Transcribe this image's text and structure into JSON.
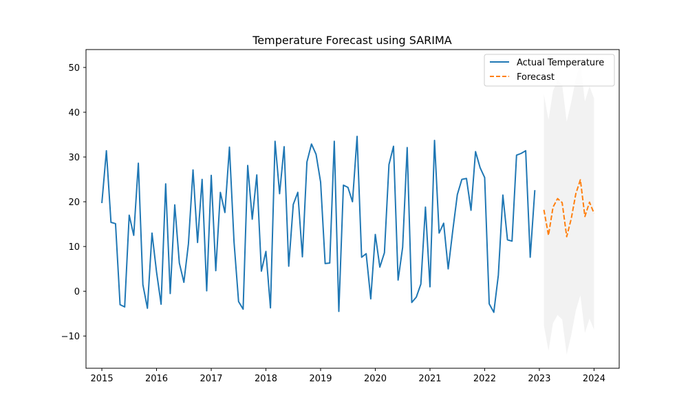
{
  "chart_data": {
    "type": "line",
    "title": "Temperature Forecast using SARIMA",
    "xlabel": "",
    "ylabel": "",
    "xlim": [
      2014.71,
      2024.46
    ],
    "ylim": [
      -17.2,
      54.0
    ],
    "x_ticks": [
      2015,
      2016,
      2017,
      2018,
      2019,
      2020,
      2021,
      2022,
      2023,
      2024
    ],
    "x_tick_labels": [
      "2015",
      "2016",
      "2017",
      "2018",
      "2019",
      "2020",
      "2021",
      "2022",
      "2023",
      "2024"
    ],
    "y_ticks": [
      -10,
      0,
      10,
      20,
      30,
      40,
      50
    ],
    "y_tick_labels": [
      "−10",
      "0",
      "10",
      "20",
      "30",
      "40",
      "50"
    ],
    "grid": false,
    "legend_position": "top-right",
    "legend": [
      "Actual Temperature",
      "Forecast"
    ],
    "series": [
      {
        "name": "Actual Temperature",
        "color": "#1f77b4",
        "style": "solid",
        "x": [
          2015.0,
          2015.083,
          2015.167,
          2015.25,
          2015.333,
          2015.417,
          2015.5,
          2015.583,
          2015.667,
          2015.75,
          2015.833,
          2015.917,
          2016.0,
          2016.083,
          2016.167,
          2016.25,
          2016.333,
          2016.417,
          2016.5,
          2016.583,
          2016.667,
          2016.75,
          2016.833,
          2016.917,
          2017.0,
          2017.083,
          2017.167,
          2017.25,
          2017.333,
          2017.417,
          2017.5,
          2017.583,
          2017.667,
          2017.75,
          2017.833,
          2017.917,
          2018.0,
          2018.083,
          2018.167,
          2018.25,
          2018.333,
          2018.417,
          2018.5,
          2018.583,
          2018.667,
          2018.75,
          2018.833,
          2018.917,
          2019.0,
          2019.083,
          2019.167,
          2019.25,
          2019.333,
          2019.417,
          2019.5,
          2019.583,
          2019.667,
          2019.75,
          2019.833,
          2019.917,
          2020.0,
          2020.083,
          2020.167,
          2020.25,
          2020.333,
          2020.417,
          2020.5,
          2020.583,
          2020.667,
          2020.75,
          2020.833,
          2020.917,
          2021.0,
          2021.083,
          2021.167,
          2021.25,
          2021.333,
          2021.417,
          2021.5,
          2021.583,
          2021.667,
          2021.75,
          2021.833,
          2021.917,
          2022.0,
          2022.083,
          2022.167,
          2022.25,
          2022.333,
          2022.417,
          2022.5,
          2022.583,
          2022.667,
          2022.75,
          2022.833,
          2022.917
        ],
        "y": [
          19.7,
          31.4,
          15.4,
          15.1,
          -3.0,
          -3.5,
          17.0,
          12.5,
          28.6,
          1.5,
          -3.8,
          13.0,
          4.3,
          -2.9,
          24.0,
          -0.5,
          19.3,
          6.3,
          2.0,
          10.6,
          27.1,
          10.9,
          25.0,
          0.1,
          25.9,
          4.6,
          22.1,
          17.6,
          32.2,
          11.0,
          -2.3,
          -4.0,
          28.1,
          16.1,
          26.0,
          4.5,
          8.9,
          -3.7,
          33.5,
          21.8,
          32.3,
          5.6,
          19.4,
          22.1,
          7.7,
          28.9,
          32.9,
          30.6,
          24.4,
          6.2,
          6.3,
          33.5,
          -4.5,
          23.7,
          23.2,
          20.0,
          34.6,
          7.6,
          8.4,
          -1.7,
          12.7,
          5.4,
          8.6,
          28.3,
          32.4,
          2.5,
          9.8,
          32.1,
          -2.5,
          -1.3,
          1.6,
          18.8,
          1.0,
          33.7,
          13.0,
          15.2,
          5.0,
          13.6,
          21.6,
          25.0,
          25.2,
          18.1,
          31.2,
          27.6,
          25.4,
          -2.8,
          -4.7,
          3.6,
          21.5,
          11.5,
          11.2,
          30.4,
          30.8,
          31.4,
          7.6,
          22.6
        ]
      },
      {
        "name": "Forecast",
        "color": "#ff7f0e",
        "style": "dashed",
        "x": [
          2023.083,
          2023.167,
          2023.25,
          2023.333,
          2023.417,
          2023.5,
          2023.583,
          2023.667,
          2023.75,
          2023.833,
          2023.917,
          2024.0
        ],
        "y": [
          18.2,
          12.5,
          18.8,
          20.7,
          19.8,
          12.2,
          16.2,
          21.8,
          24.9,
          16.7,
          19.9,
          17.4
        ]
      }
    ],
    "confidence_band": {
      "color": "#d3d3d3",
      "x": [
        2023.083,
        2023.167,
        2023.25,
        2023.333,
        2023.417,
        2023.5,
        2023.583,
        2023.667,
        2023.75,
        2023.833,
        2023.917,
        2024.0
      ],
      "upper": [
        44.0,
        38.3,
        44.8,
        47.1,
        46.2,
        37.9,
        42.3,
        47.5,
        51.0,
        42.4,
        45.8,
        43.1
      ],
      "lower": [
        -7.6,
        -13.3,
        -7.1,
        -5.3,
        -6.3,
        -14.1,
        -9.8,
        -4.3,
        -0.9,
        -9.3,
        -6.1,
        -8.6
      ]
    }
  }
}
